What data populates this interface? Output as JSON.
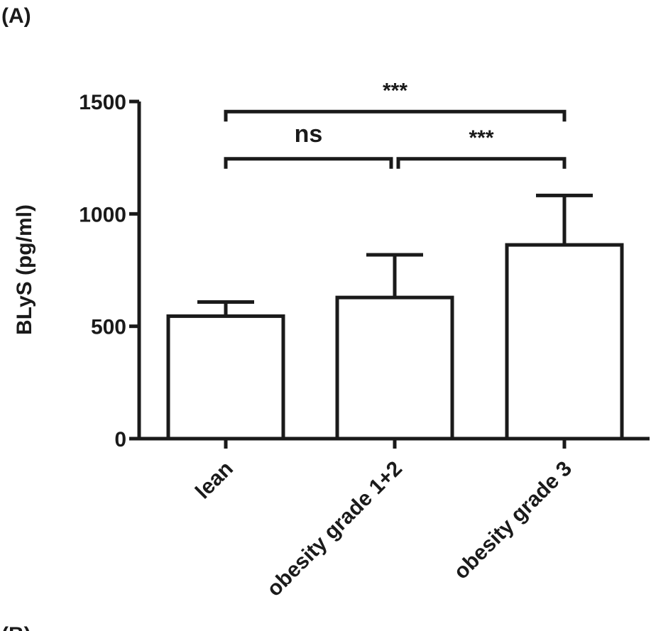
{
  "panel_labels": {
    "top": "(A)",
    "bottom": "(B)"
  },
  "chart_data": {
    "type": "bar",
    "ylabel": "BLyS (pg/ml)",
    "xlabel": "",
    "ylim": [
      0,
      1500
    ],
    "yticks": [
      0,
      500,
      1000,
      1500
    ],
    "categories": [
      "lean",
      "obesity grade 1+2",
      "obesity grade 3"
    ],
    "values": [
      545,
      628,
      862
    ],
    "error_upper": [
      608,
      818,
      1082
    ],
    "bar_fill": "#ffffff",
    "stroke_color": "#1a1a1a",
    "significance": [
      {
        "from": 0,
        "to": 2,
        "label": "***",
        "level": 1455
      },
      {
        "from": 0,
        "to": 1,
        "label": "ns",
        "level": 1245
      },
      {
        "from": 1,
        "to": 2,
        "label": "***",
        "level": 1245
      }
    ]
  }
}
